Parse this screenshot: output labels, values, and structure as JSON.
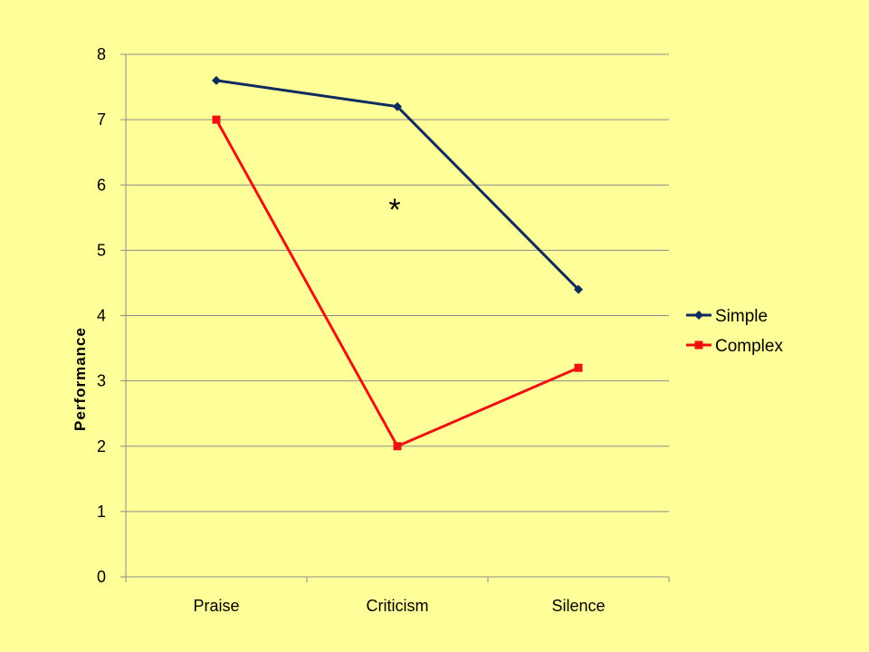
{
  "chart_data": {
    "type": "line",
    "categories": [
      "Praise",
      "Criticism",
      "Silence"
    ],
    "series": [
      {
        "name": "Simple",
        "values": [
          7.6,
          7.2,
          4.4
        ],
        "color": "#0D2B5E",
        "marker": "diamond"
      },
      {
        "name": "Complex",
        "values": [
          7.0,
          2.0,
          3.2
        ],
        "color": "#EE1111",
        "marker": "square"
      }
    ],
    "ylabel": "Performance",
    "xlabel": "",
    "ylim": [
      0,
      8
    ],
    "yticks": [
      0,
      1,
      2,
      3,
      4,
      5,
      6,
      7,
      8
    ],
    "grid": true,
    "legend": "right",
    "annotations": [
      {
        "text": "*",
        "x": "Criticism",
        "y": 5.6
      }
    ],
    "colors": {
      "background": "#FFFF99",
      "grid": "#8C8C8C",
      "axis": "#8C8C8C"
    }
  }
}
